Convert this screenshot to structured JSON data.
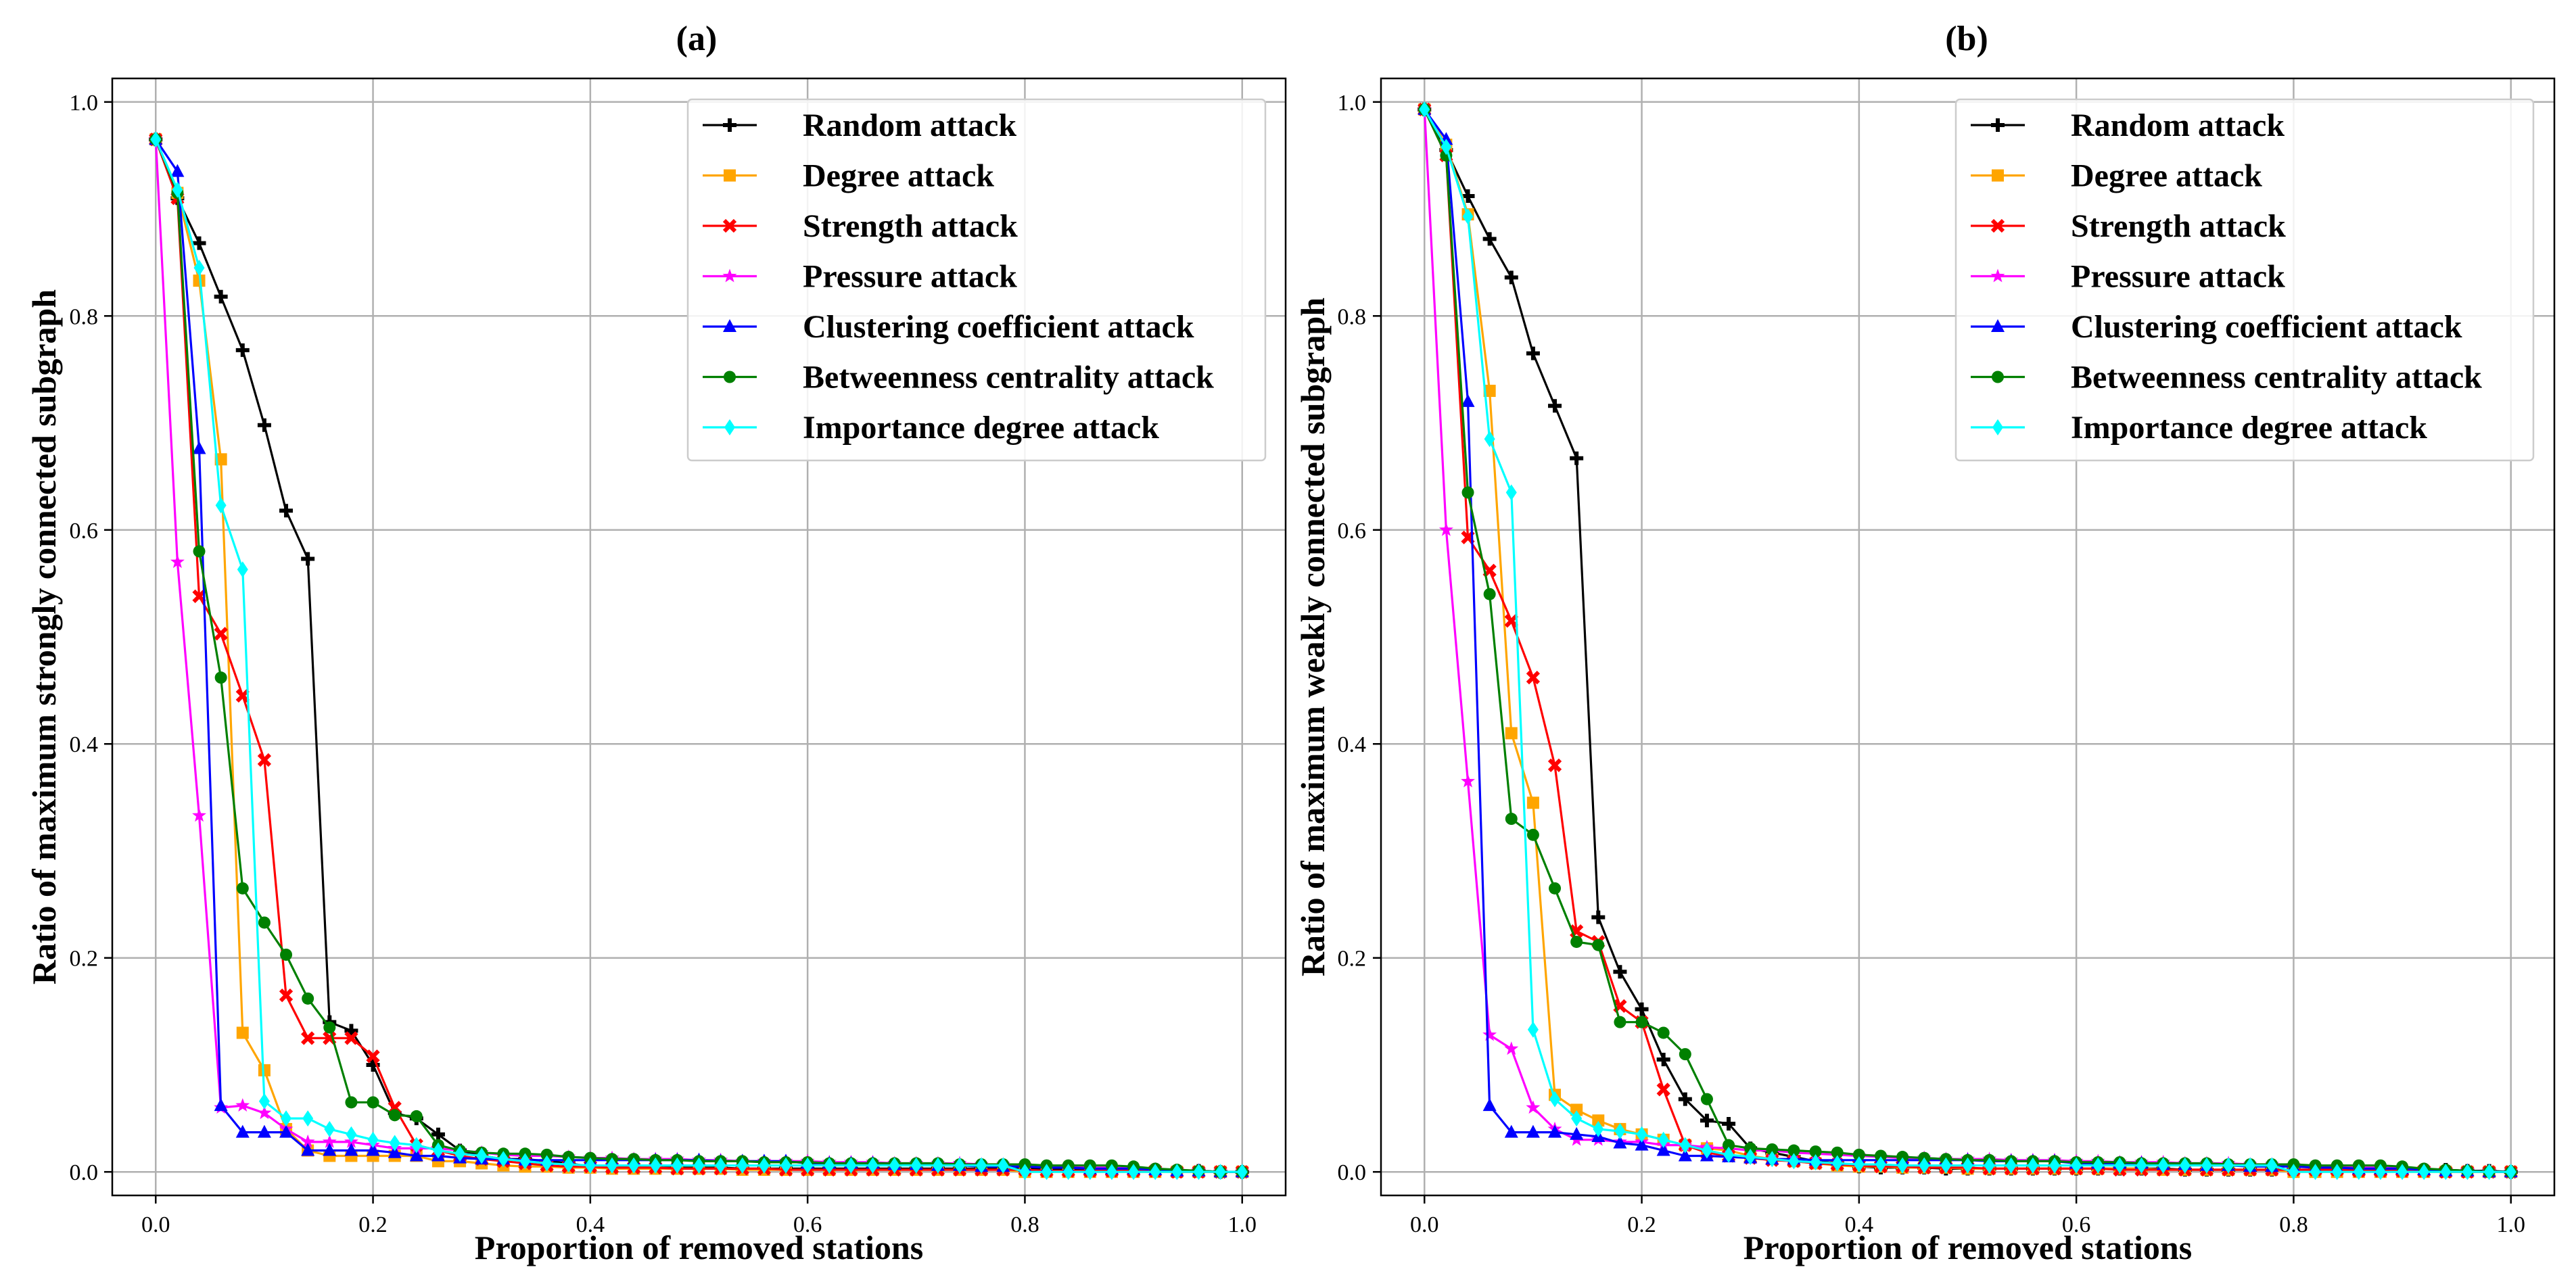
{
  "chart_data": [
    {
      "type": "line",
      "title": "(a)",
      "xlabel": "Proportion of removed stations",
      "ylabel": "Ratio of maximum strongly connected subgraph",
      "xlim": [
        -0.04,
        1.04
      ],
      "ylim": [
        -0.022,
        1.022
      ],
      "xticks": [
        0.0,
        0.2,
        0.4,
        0.6,
        0.8,
        1.0
      ],
      "xtick_labels": [
        "0.0",
        "0.2",
        "0.4",
        "0.6",
        "0.8",
        "1.0"
      ],
      "yticks": [
        0.0,
        0.2,
        0.4,
        0.6,
        0.8,
        1.0
      ],
      "ytick_labels": [
        "0.0",
        "0.2",
        "0.4",
        "0.6",
        "0.8",
        "1.0"
      ],
      "grid": true,
      "legend_position": "top-right",
      "x": [
        0.0,
        0.02,
        0.04,
        0.06,
        0.08,
        0.1,
        0.12,
        0.14,
        0.16,
        0.18,
        0.2,
        0.22,
        0.24,
        0.26,
        0.28,
        0.3,
        0.32,
        0.34,
        0.36,
        0.38,
        0.4,
        0.42,
        0.44,
        0.46,
        0.48,
        0.5,
        0.52,
        0.54,
        0.56,
        0.58,
        0.6,
        0.62,
        0.64,
        0.66,
        0.68,
        0.7,
        0.72,
        0.74,
        0.76,
        0.78,
        0.8,
        0.82,
        0.84,
        0.86,
        0.88,
        0.9,
        0.92,
        0.94,
        0.96,
        0.98,
        1.0
      ],
      "series": [
        {
          "name": "Random attack",
          "color": "#000000",
          "marker": "plus",
          "values": [
            0.965,
            0.91,
            0.868,
            0.818,
            0.768,
            0.698,
            0.618,
            0.573,
            0.14,
            0.132,
            0.1,
            0.055,
            0.05,
            0.035,
            0.02,
            0.015,
            0.012,
            0.012,
            0.01,
            0.008,
            0.005,
            0.005,
            0.005,
            0.004,
            0.004,
            0.004,
            0.004,
            0.003,
            0.003,
            0.003,
            0.003,
            0.003,
            0.003,
            0.003,
            0.003,
            0.003,
            0.003,
            0.003,
            0.003,
            0.003,
            0.003,
            0.003,
            0.003,
            0.003,
            0.002,
            0.002,
            0.001,
            0.001,
            0.001,
            0.0,
            0.0
          ]
        },
        {
          "name": "Degree attack",
          "color": "#FFA500",
          "marker": "square",
          "values": [
            0.965,
            0.915,
            0.833,
            0.666,
            0.13,
            0.095,
            0.04,
            0.02,
            0.015,
            0.015,
            0.015,
            0.015,
            0.015,
            0.01,
            0.01,
            0.008,
            0.006,
            0.005,
            0.005,
            0.004,
            0.004,
            0.003,
            0.003,
            0.003,
            0.003,
            0.003,
            0.003,
            0.002,
            0.002,
            0.002,
            0.002,
            0.002,
            0.002,
            0.002,
            0.002,
            0.002,
            0.002,
            0.002,
            0.002,
            0.002,
            0.0,
            0.0,
            0.0,
            0.0,
            0.0,
            0.0,
            0.0,
            0.0,
            0.0,
            0.0,
            0.0
          ]
        },
        {
          "name": "Strength attack",
          "color": "#FF0000",
          "marker": "x",
          "values": [
            0.965,
            0.91,
            0.538,
            0.503,
            0.445,
            0.385,
            0.165,
            0.125,
            0.125,
            0.125,
            0.108,
            0.06,
            0.025,
            0.02,
            0.015,
            0.012,
            0.01,
            0.008,
            0.006,
            0.005,
            0.005,
            0.004,
            0.004,
            0.004,
            0.003,
            0.003,
            0.003,
            0.003,
            0.003,
            0.002,
            0.002,
            0.002,
            0.002,
            0.002,
            0.002,
            0.002,
            0.002,
            0.002,
            0.002,
            0.002,
            0.002,
            0.001,
            0.001,
            0.001,
            0.001,
            0.001,
            0.001,
            0.0,
            0.0,
            0.0,
            0.0
          ]
        },
        {
          "name": "Pressure attack",
          "color": "#FF00FF",
          "marker": "star",
          "values": [
            0.965,
            0.57,
            0.333,
            0.06,
            0.062,
            0.055,
            0.04,
            0.028,
            0.028,
            0.028,
            0.025,
            0.022,
            0.022,
            0.022,
            0.02,
            0.018,
            0.016,
            0.015,
            0.015,
            0.014,
            0.013,
            0.013,
            0.012,
            0.012,
            0.012,
            0.011,
            0.011,
            0.01,
            0.01,
            0.01,
            0.01,
            0.009,
            0.009,
            0.009,
            0.008,
            0.008,
            0.008,
            0.008,
            0.007,
            0.007,
            0.006,
            0.005,
            0.005,
            0.004,
            0.004,
            0.003,
            0.002,
            0.001,
            0.001,
            0.0,
            0.0
          ]
        },
        {
          "name": "Clustering coefficient attack",
          "color": "#0000FF",
          "marker": "triangle",
          "values": [
            0.965,
            0.935,
            0.676,
            0.062,
            0.037,
            0.037,
            0.037,
            0.02,
            0.02,
            0.02,
            0.02,
            0.018,
            0.015,
            0.015,
            0.013,
            0.012,
            0.012,
            0.011,
            0.011,
            0.011,
            0.011,
            0.011,
            0.011,
            0.011,
            0.011,
            0.011,
            0.01,
            0.01,
            0.01,
            0.01,
            0.008,
            0.008,
            0.008,
            0.008,
            0.007,
            0.007,
            0.006,
            0.006,
            0.005,
            0.005,
            0.005,
            0.004,
            0.004,
            0.003,
            0.003,
            0.003,
            0.002,
            0.001,
            0.001,
            0.0,
            0.0
          ]
        },
        {
          "name": "Betweenness centrality attack",
          "color": "#008000",
          "marker": "circle",
          "values": [
            0.965,
            0.915,
            0.58,
            0.462,
            0.265,
            0.233,
            0.203,
            0.162,
            0.135,
            0.065,
            0.065,
            0.053,
            0.052,
            0.025,
            0.02,
            0.018,
            0.017,
            0.017,
            0.016,
            0.014,
            0.013,
            0.012,
            0.012,
            0.011,
            0.011,
            0.01,
            0.01,
            0.01,
            0.009,
            0.009,
            0.009,
            0.008,
            0.008,
            0.008,
            0.008,
            0.008,
            0.008,
            0.007,
            0.007,
            0.007,
            0.007,
            0.006,
            0.006,
            0.006,
            0.006,
            0.005,
            0.003,
            0.002,
            0.001,
            0.0,
            0.0
          ]
        },
        {
          "name": "Importance degree attack",
          "color": "#00FFFF",
          "marker": "diamond",
          "values": [
            0.965,
            0.918,
            0.845,
            0.623,
            0.563,
            0.066,
            0.05,
            0.05,
            0.04,
            0.035,
            0.03,
            0.027,
            0.025,
            0.02,
            0.017,
            0.015,
            0.012,
            0.01,
            0.008,
            0.007,
            0.006,
            0.006,
            0.006,
            0.006,
            0.006,
            0.006,
            0.006,
            0.006,
            0.006,
            0.006,
            0.006,
            0.006,
            0.006,
            0.006,
            0.006,
            0.006,
            0.006,
            0.006,
            0.006,
            0.006,
            0.0,
            0.0,
            0.0,
            0.0,
            0.0,
            0.0,
            0.0,
            0.0,
            0.0,
            0.0,
            0.0
          ]
        }
      ]
    },
    {
      "type": "line",
      "title": "(b)",
      "xlabel": "Proportion of removed stations",
      "ylabel": "Ratio of maximum weakly connected subgraph",
      "xlim": [
        -0.04,
        1.04
      ],
      "ylim": [
        -0.022,
        1.022
      ],
      "xticks": [
        0.0,
        0.2,
        0.4,
        0.6,
        0.8,
        1.0
      ],
      "xtick_labels": [
        "0.0",
        "0.2",
        "0.4",
        "0.6",
        "0.8",
        "1.0"
      ],
      "yticks": [
        0.0,
        0.2,
        0.4,
        0.6,
        0.8,
        1.0
      ],
      "ytick_labels": [
        "0.0",
        "0.2",
        "0.4",
        "0.6",
        "0.8",
        "1.0"
      ],
      "grid": true,
      "legend_position": "top-right",
      "x": [
        0.0,
        0.02,
        0.04,
        0.06,
        0.08,
        0.1,
        0.12,
        0.14,
        0.16,
        0.18,
        0.2,
        0.22,
        0.24,
        0.26,
        0.28,
        0.3,
        0.32,
        0.34,
        0.36,
        0.38,
        0.4,
        0.42,
        0.44,
        0.46,
        0.48,
        0.5,
        0.52,
        0.54,
        0.56,
        0.58,
        0.6,
        0.62,
        0.64,
        0.66,
        0.68,
        0.7,
        0.72,
        0.74,
        0.76,
        0.78,
        0.8,
        0.82,
        0.84,
        0.86,
        0.88,
        0.9,
        0.92,
        0.94,
        0.96,
        0.98,
        1.0
      ],
      "series": [
        {
          "name": "Random attack",
          "color": "#000000",
          "marker": "plus",
          "values": [
            0.993,
            0.955,
            0.912,
            0.872,
            0.836,
            0.765,
            0.716,
            0.667,
            0.238,
            0.187,
            0.152,
            0.105,
            0.068,
            0.048,
            0.045,
            0.022,
            0.018,
            0.014,
            0.01,
            0.008,
            0.005,
            0.004,
            0.004,
            0.004,
            0.003,
            0.003,
            0.003,
            0.003,
            0.003,
            0.003,
            0.003,
            0.003,
            0.003,
            0.003,
            0.003,
            0.002,
            0.002,
            0.002,
            0.002,
            0.002,
            0.002,
            0.002,
            0.002,
            0.002,
            0.002,
            0.002,
            0.002,
            0.002,
            0.001,
            0.001,
            0.0
          ]
        },
        {
          "name": "Degree attack",
          "color": "#FFA500",
          "marker": "square",
          "values": [
            0.993,
            0.96,
            0.895,
            0.73,
            0.41,
            0.345,
            0.072,
            0.058,
            0.048,
            0.04,
            0.035,
            0.03,
            0.025,
            0.022,
            0.02,
            0.015,
            0.012,
            0.01,
            0.008,
            0.006,
            0.005,
            0.005,
            0.004,
            0.004,
            0.004,
            0.003,
            0.003,
            0.003,
            0.003,
            0.003,
            0.003,
            0.003,
            0.003,
            0.003,
            0.002,
            0.002,
            0.002,
            0.002,
            0.002,
            0.002,
            0.0,
            0.0,
            0.0,
            0.0,
            0.0,
            0.0,
            0.0,
            0.0,
            0.0,
            0.0,
            0.0
          ]
        },
        {
          "name": "Strength attack",
          "color": "#FF0000",
          "marker": "x",
          "values": [
            0.993,
            0.95,
            0.593,
            0.562,
            0.515,
            0.462,
            0.38,
            0.225,
            0.215,
            0.155,
            0.14,
            0.077,
            0.025,
            0.018,
            0.015,
            0.013,
            0.011,
            0.01,
            0.008,
            0.007,
            0.006,
            0.005,
            0.005,
            0.004,
            0.004,
            0.004,
            0.003,
            0.003,
            0.003,
            0.003,
            0.003,
            0.003,
            0.002,
            0.002,
            0.002,
            0.002,
            0.002,
            0.002,
            0.002,
            0.002,
            0.002,
            0.002,
            0.002,
            0.001,
            0.001,
            0.001,
            0.001,
            0.0,
            0.0,
            0.0,
            0.0
          ]
        },
        {
          "name": "Pressure attack",
          "color": "#FF00FF",
          "marker": "star",
          "values": [
            0.993,
            0.6,
            0.365,
            0.128,
            0.115,
            0.06,
            0.04,
            0.03,
            0.03,
            0.028,
            0.028,
            0.025,
            0.025,
            0.023,
            0.022,
            0.02,
            0.02,
            0.018,
            0.017,
            0.016,
            0.015,
            0.014,
            0.013,
            0.013,
            0.012,
            0.012,
            0.012,
            0.011,
            0.011,
            0.011,
            0.01,
            0.01,
            0.009,
            0.009,
            0.009,
            0.008,
            0.008,
            0.008,
            0.007,
            0.007,
            0.006,
            0.005,
            0.005,
            0.004,
            0.004,
            0.003,
            0.002,
            0.001,
            0.001,
            0.0,
            0.0
          ]
        },
        {
          "name": "Clustering coefficient attack",
          "color": "#0000FF",
          "marker": "triangle",
          "values": [
            0.993,
            0.965,
            0.72,
            0.062,
            0.037,
            0.037,
            0.037,
            0.035,
            0.033,
            0.027,
            0.025,
            0.02,
            0.015,
            0.015,
            0.014,
            0.013,
            0.012,
            0.012,
            0.011,
            0.011,
            0.011,
            0.011,
            0.011,
            0.011,
            0.011,
            0.011,
            0.01,
            0.01,
            0.01,
            0.01,
            0.008,
            0.008,
            0.008,
            0.008,
            0.007,
            0.007,
            0.006,
            0.006,
            0.005,
            0.005,
            0.005,
            0.004,
            0.004,
            0.003,
            0.003,
            0.003,
            0.002,
            0.001,
            0.001,
            0.0,
            0.0
          ]
        },
        {
          "name": "Betweenness centrality attack",
          "color": "#008000",
          "marker": "circle",
          "values": [
            0.993,
            0.95,
            0.635,
            0.54,
            0.33,
            0.315,
            0.265,
            0.215,
            0.212,
            0.14,
            0.14,
            0.13,
            0.11,
            0.068,
            0.025,
            0.022,
            0.021,
            0.02,
            0.019,
            0.018,
            0.016,
            0.015,
            0.014,
            0.013,
            0.012,
            0.011,
            0.011,
            0.01,
            0.01,
            0.01,
            0.009,
            0.009,
            0.009,
            0.008,
            0.008,
            0.008,
            0.008,
            0.007,
            0.007,
            0.007,
            0.007,
            0.006,
            0.006,
            0.006,
            0.006,
            0.005,
            0.003,
            0.002,
            0.001,
            0.0,
            0.0
          ]
        },
        {
          "name": "Importance degree attack",
          "color": "#00FFFF",
          "marker": "diamond",
          "values": [
            0.993,
            0.958,
            0.893,
            0.685,
            0.635,
            0.133,
            0.068,
            0.05,
            0.04,
            0.038,
            0.035,
            0.03,
            0.025,
            0.02,
            0.016,
            0.014,
            0.012,
            0.01,
            0.009,
            0.008,
            0.007,
            0.007,
            0.006,
            0.006,
            0.006,
            0.006,
            0.006,
            0.006,
            0.006,
            0.006,
            0.006,
            0.006,
            0.006,
            0.006,
            0.006,
            0.006,
            0.006,
            0.006,
            0.006,
            0.006,
            0.0,
            0.0,
            0.0,
            0.0,
            0.0,
            0.0,
            0.0,
            0.0,
            0.0,
            0.0,
            0.0
          ]
        }
      ]
    }
  ]
}
